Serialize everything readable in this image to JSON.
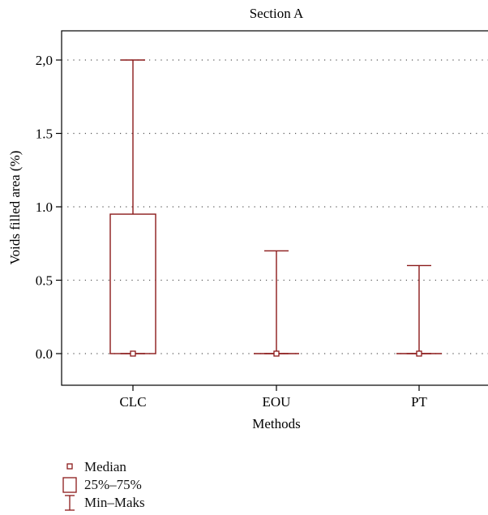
{
  "chart_data": {
    "type": "boxplot",
    "title": "Section A",
    "xlabel": "Methods",
    "ylabel": "Voids filled area (%)",
    "categories": [
      "CLC",
      "EOU",
      "PT"
    ],
    "ylim": [
      -0.2,
      2.2
    ],
    "yticks": [
      0.0,
      0.5,
      1.0,
      1.5,
      2.0
    ],
    "ytick_labels": [
      "0.0",
      "0.5",
      "1.0",
      "1.5",
      "2,0"
    ],
    "grid": "horizontal dotted",
    "boxes": [
      {
        "category": "CLC",
        "min": 0.0,
        "q1": 0.0,
        "median": 0.0,
        "q3": 0.95,
        "max": 2.0
      },
      {
        "category": "EOU",
        "min": 0.0,
        "q1": 0.0,
        "median": 0.0,
        "q3": 0.0,
        "max": 0.7
      },
      {
        "category": "PT",
        "min": 0.0,
        "q1": 0.0,
        "median": 0.0,
        "q3": 0.0,
        "max": 0.6
      }
    ],
    "color": "#8b1a1a",
    "legend": {
      "position": "bottom-left",
      "items": [
        {
          "symbol": "median-marker",
          "label": "Median"
        },
        {
          "symbol": "box",
          "label": "25%–75%"
        },
        {
          "symbol": "whisker",
          "label": "Min–Maks"
        }
      ]
    }
  }
}
